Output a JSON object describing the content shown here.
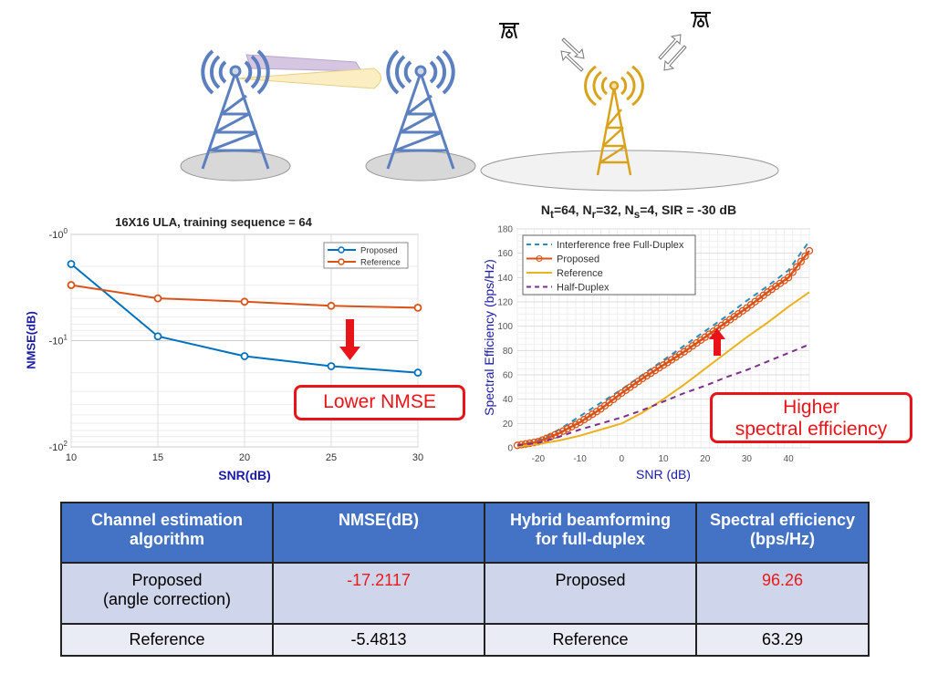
{
  "colors": {
    "blue_tower": "#5b7fbf",
    "gold_tower": "#d9a21b",
    "callout": "#e8141a",
    "header": "#4472c4"
  },
  "callouts": {
    "left": "Lower NMSE",
    "right_line1": "Higher",
    "right_line2": "spectral efficiency"
  },
  "chart_data": [
    {
      "type": "line",
      "title": "16X16 ULA, training sequence = 64",
      "xlabel": "SNR(dB)",
      "ylabel": "NMSE(dB)",
      "yscale": "log-negative",
      "x": [
        10,
        15,
        20,
        25,
        30
      ],
      "xlim": [
        10,
        30
      ],
      "xticks": [
        "10",
        "15",
        "20",
        "25",
        "30"
      ],
      "ylim": [
        -1,
        -100
      ],
      "yticks": [
        "-10^0",
        "-10^1",
        "-10^2"
      ],
      "grid": true,
      "legend": "top-right",
      "series": [
        {
          "name": "Proposed",
          "color": "#0072bd",
          "values": [
            -1.9,
            -9.1,
            -14,
            -17.4,
            -20
          ]
        },
        {
          "name": "Reference",
          "color": "#d95319",
          "values": [
            -3.0,
            -4.0,
            -4.3,
            -4.7,
            -4.9
          ]
        }
      ]
    },
    {
      "type": "line",
      "title_parts": [
        "N",
        "t",
        "=64, N",
        "r",
        "=32, N",
        "s",
        "=4, SIR = -30 dB"
      ],
      "xlabel": "SNR (dB)",
      "ylabel": "Spectral Efficiency (bps/Hz)",
      "x": [
        -25,
        -20,
        -15,
        -10,
        -5,
        0,
        5,
        10,
        15,
        20,
        25,
        30,
        35,
        40,
        45
      ],
      "xlim": [
        -25,
        45
      ],
      "ylim": [
        0,
        180
      ],
      "xticks": [
        "-20",
        "-10",
        "0",
        "10",
        "20",
        "30",
        "40"
      ],
      "yticks": [
        "0",
        "20",
        "40",
        "60",
        "80",
        "100",
        "120",
        "140",
        "160",
        "180"
      ],
      "grid": true,
      "legend": "top-left",
      "series": [
        {
          "name": "Interference free Full-Duplex",
          "color": "#2b8cbe",
          "dash": "dashed",
          "values": [
            2,
            6,
            15,
            26,
            37,
            48,
            60,
            72,
            84,
            96,
            108,
            121,
            133,
            146,
            170
          ]
        },
        {
          "name": "Proposed",
          "color": "#d95319",
          "marker": "circle",
          "values": [
            2,
            5,
            12,
            21,
            32,
            45,
            57,
            68,
            79,
            91,
            103,
            115,
            128,
            140,
            162
          ]
        },
        {
          "name": "Reference",
          "color": "#edb120",
          "values": [
            1,
            3,
            6,
            10,
            15,
            20,
            29,
            40,
            52,
            65,
            78,
            91,
            103,
            116,
            128
          ]
        },
        {
          "name": "Half-Duplex",
          "color": "#7e2f8e",
          "dash": "dashed",
          "values": [
            2,
            4,
            9,
            15,
            20,
            25,
            31,
            38,
            45,
            51,
            58,
            64,
            71,
            78,
            85
          ]
        }
      ]
    }
  ],
  "table": {
    "headers": [
      [
        "Channel estimation",
        "algorithm"
      ],
      [
        "NMSE(dB)"
      ],
      [
        "Hybrid beamforming",
        "for full-duplex"
      ],
      [
        "Spectral efficiency",
        "(bps/Hz)"
      ]
    ],
    "rows": [
      [
        [
          "Proposed",
          "(angle correction)"
        ],
        "-17.2117",
        "Proposed",
        "96.26"
      ],
      [
        [
          "Reference"
        ],
        "-5.4813",
        "Reference",
        "63.29"
      ]
    ]
  }
}
